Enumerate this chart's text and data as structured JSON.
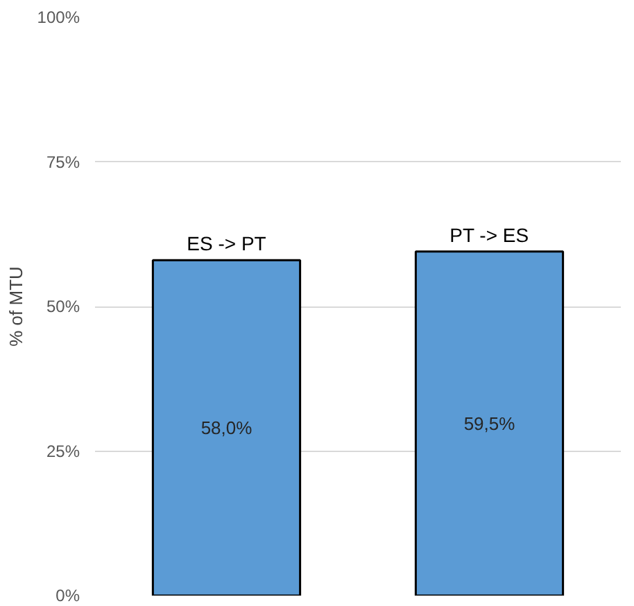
{
  "chart_data": {
    "type": "bar",
    "ylabel": "% of MTU",
    "categories": [
      "ES -> PT",
      "PT -> ES"
    ],
    "values": [
      58.0,
      59.5
    ],
    "value_labels": [
      "58,0%",
      "59,5%"
    ],
    "color": "#5b9bd5",
    "ylim": [
      0,
      100
    ],
    "yticks": [
      {
        "value": 0,
        "label": "0%"
      },
      {
        "value": 25,
        "label": "25%"
      },
      {
        "value": 50,
        "label": "50%"
      },
      {
        "value": 75,
        "label": "75%"
      },
      {
        "value": 100,
        "label": "100%"
      }
    ],
    "grid": "y"
  }
}
